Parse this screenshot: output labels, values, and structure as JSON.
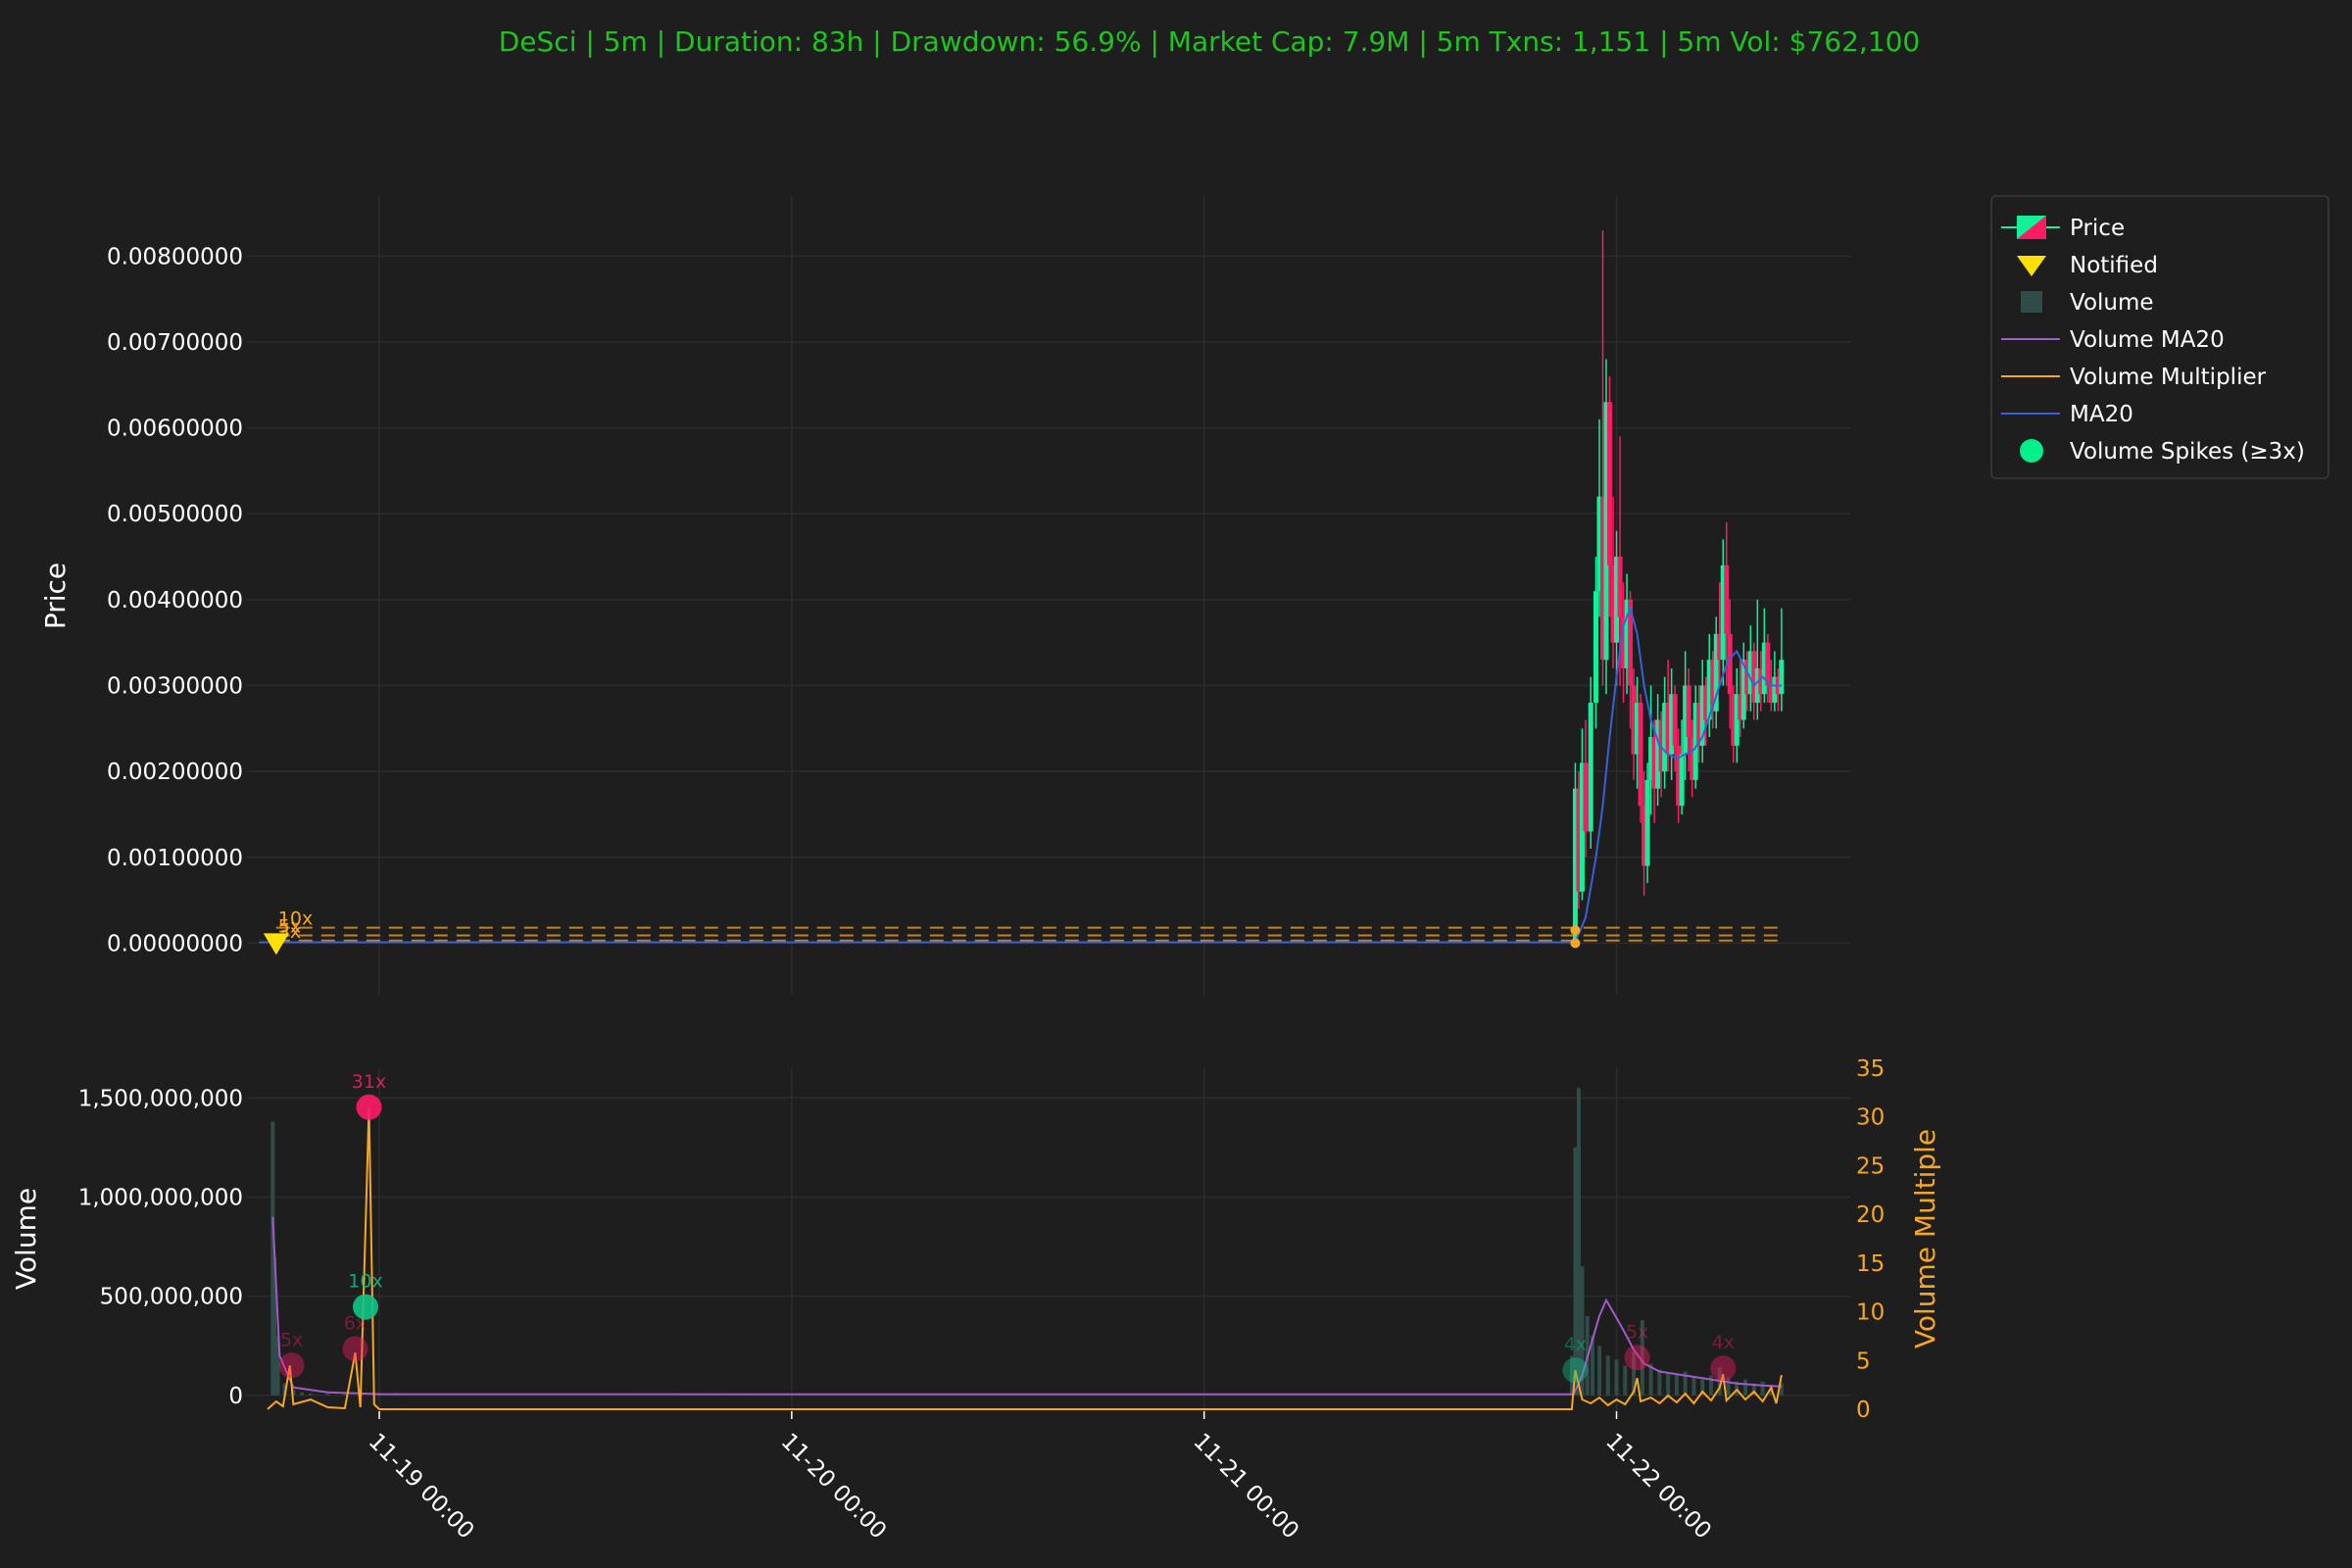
{
  "chart_data": {
    "type": "candlestick",
    "title": "DeSci | 5m | Duration: 83h | Drawdown: 56.9% | Market Cap: 7.9M | 5m Txns: 1,151 | 5m Vol: $762,100",
    "x_ticks": [
      "11-19 00:00",
      "11-20 00:00",
      "11-21 00:00",
      "11-22 00:00"
    ],
    "x_range_hours": [
      -7.7,
      85.6
    ],
    "price_panel": {
      "ylabel": "Price",
      "y_ticks": [
        "0.00000000",
        "0.00100000",
        "0.00200000",
        "0.00300000",
        "0.00400000",
        "0.00500000",
        "0.00600000",
        "0.00700000",
        "0.00800000"
      ],
      "ylim": [
        -0.0006,
        0.0087
      ],
      "candles_hours": [
        [
          69.6,
          2e-05,
          0.0018,
          0.0021,
          1e-05
        ],
        [
          69.8,
          0.0018,
          0.0006,
          0.002,
          0.0004
        ],
        [
          70.0,
          0.0006,
          0.0021,
          0.0025,
          0.0005
        ],
        [
          70.2,
          0.0021,
          0.0013,
          0.0026,
          0.001
        ],
        [
          70.5,
          0.0013,
          0.0028,
          0.0031,
          0.0011
        ],
        [
          70.8,
          0.0028,
          0.0041,
          0.0045,
          0.0025
        ],
        [
          71.0,
          0.0041,
          0.0052,
          0.0061,
          0.0038
        ],
        [
          71.2,
          0.0052,
          0.0033,
          0.0083,
          0.003
        ],
        [
          71.4,
          0.0033,
          0.0063,
          0.0068,
          0.0029
        ],
        [
          71.6,
          0.0063,
          0.0044,
          0.0066,
          0.0038
        ],
        [
          71.8,
          0.0044,
          0.0035,
          0.0052,
          0.0032
        ],
        [
          72.0,
          0.0035,
          0.0045,
          0.0048,
          0.003
        ],
        [
          72.2,
          0.0045,
          0.0038,
          0.0059,
          0.003
        ],
        [
          72.4,
          0.0038,
          0.0032,
          0.0042,
          0.0028
        ],
        [
          72.6,
          0.0032,
          0.004,
          0.0043,
          0.0029
        ],
        [
          72.8,
          0.004,
          0.003,
          0.0041,
          0.0025
        ],
        [
          73.0,
          0.003,
          0.0022,
          0.0032,
          0.0019
        ],
        [
          73.2,
          0.0022,
          0.0028,
          0.0031,
          0.0018
        ],
        [
          73.4,
          0.0028,
          0.0016,
          0.0029,
          0.0014
        ],
        [
          73.6,
          0.0016,
          0.0009,
          0.002,
          0.00055
        ],
        [
          73.8,
          0.0009,
          0.0019,
          0.0021,
          0.0007
        ],
        [
          74.0,
          0.0019,
          0.0024,
          0.003,
          0.0015
        ],
        [
          74.2,
          0.0024,
          0.0018,
          0.0026,
          0.0014
        ],
        [
          74.4,
          0.0018,
          0.0026,
          0.0029,
          0.0016
        ],
        [
          74.6,
          0.0026,
          0.002,
          0.0027,
          0.0017
        ],
        [
          74.8,
          0.002,
          0.0028,
          0.0031,
          0.0018
        ],
        [
          75.0,
          0.0028,
          0.0022,
          0.0033,
          0.002
        ],
        [
          75.2,
          0.0022,
          0.0029,
          0.0032,
          0.0019
        ],
        [
          75.4,
          0.0029,
          0.0023,
          0.003,
          0.002
        ],
        [
          75.6,
          0.0023,
          0.0016,
          0.0025,
          0.0014
        ],
        [
          75.8,
          0.0016,
          0.0022,
          0.0026,
          0.0015
        ],
        [
          76.0,
          0.0022,
          0.003,
          0.0034,
          0.0019
        ],
        [
          76.2,
          0.003,
          0.0024,
          0.0032,
          0.002
        ],
        [
          76.4,
          0.0024,
          0.0019,
          0.0026,
          0.0017
        ],
        [
          76.6,
          0.0019,
          0.0028,
          0.003,
          0.0018
        ],
        [
          76.8,
          0.0028,
          0.0023,
          0.003,
          0.0021
        ],
        [
          77.0,
          0.0023,
          0.003,
          0.0033,
          0.0021
        ],
        [
          77.2,
          0.003,
          0.0026,
          0.0031,
          0.0023
        ],
        [
          77.4,
          0.0026,
          0.0033,
          0.0036,
          0.0024
        ],
        [
          77.6,
          0.0033,
          0.0027,
          0.0034,
          0.0025
        ],
        [
          77.8,
          0.0027,
          0.0036,
          0.0038,
          0.0025
        ],
        [
          78.0,
          0.0036,
          0.0033,
          0.0042,
          0.003
        ],
        [
          78.2,
          0.0033,
          0.0044,
          0.0047,
          0.003
        ],
        [
          78.4,
          0.0044,
          0.0036,
          0.0049,
          0.003
        ],
        [
          78.6,
          0.0036,
          0.0029,
          0.004,
          0.0025
        ],
        [
          78.8,
          0.0029,
          0.0023,
          0.003,
          0.0021
        ],
        [
          79.0,
          0.0023,
          0.0029,
          0.0032,
          0.0021
        ],
        [
          79.2,
          0.0029,
          0.0026,
          0.0033,
          0.0024
        ],
        [
          79.4,
          0.0026,
          0.0033,
          0.0035,
          0.0025
        ],
        [
          79.6,
          0.0033,
          0.0029,
          0.0034,
          0.0027
        ],
        [
          79.8,
          0.0029,
          0.0034,
          0.0037,
          0.0027
        ],
        [
          80.0,
          0.0034,
          0.0028,
          0.0035,
          0.0026
        ],
        [
          80.2,
          0.0028,
          0.0032,
          0.004,
          0.0026
        ],
        [
          80.4,
          0.0032,
          0.0029,
          0.0034,
          0.0027
        ],
        [
          80.6,
          0.0029,
          0.0035,
          0.0039,
          0.0028
        ],
        [
          80.8,
          0.0035,
          0.003,
          0.0036,
          0.0028
        ],
        [
          81.0,
          0.003,
          0.0028,
          0.0033,
          0.0027
        ],
        [
          81.2,
          0.0028,
          0.0031,
          0.0034,
          0.0027
        ],
        [
          81.4,
          0.0031,
          0.0029,
          0.0032,
          0.0027
        ],
        [
          81.6,
          0.0029,
          0.0033,
          0.0039,
          0.0027
        ]
      ],
      "ma20_hours": [
        [
          -7.0,
          1e-05
        ],
        [
          69.6,
          1e-05
        ],
        [
          70.2,
          0.0003
        ],
        [
          70.8,
          0.001
        ],
        [
          71.2,
          0.0016
        ],
        [
          71.6,
          0.0024
        ],
        [
          72.0,
          0.0031
        ],
        [
          72.4,
          0.0037
        ],
        [
          72.8,
          0.0039
        ],
        [
          73.2,
          0.0036
        ],
        [
          73.6,
          0.003
        ],
        [
          74.0,
          0.0026
        ],
        [
          74.5,
          0.0023
        ],
        [
          75.0,
          0.0022
        ],
        [
          75.5,
          0.00215
        ],
        [
          76.0,
          0.0022
        ],
        [
          76.5,
          0.00225
        ],
        [
          77.0,
          0.0024
        ],
        [
          77.5,
          0.0027
        ],
        [
          78.0,
          0.003
        ],
        [
          78.5,
          0.0033
        ],
        [
          79.0,
          0.0034
        ],
        [
          79.5,
          0.0032
        ],
        [
          80.0,
          0.003
        ],
        [
          80.5,
          0.0031
        ],
        [
          81.0,
          0.003
        ],
        [
          81.6,
          0.003
        ]
      ],
      "notified": {
        "x_hours": -6.0,
        "y": 0.0
      },
      "threshold_lines": [
        {
          "label": "10x",
          "y": 0.00018
        },
        {
          "label": "5x",
          "y": 9e-05
        },
        {
          "label": "3x",
          "y": 3e-05
        }
      ],
      "markers_hours": [
        69.6
      ]
    },
    "volume_panel": {
      "ylabel": "Volume",
      "y_ticks": [
        0,
        500000000,
        1000000000,
        1500000000
      ],
      "y_tick_labels": [
        "0",
        "500,000,000",
        "1,000,000,000",
        "1,500,000,000"
      ],
      "ylim": [
        -80000000,
        1650000000
      ],
      "y2label": "Volume Multiple",
      "y2_ticks": [
        0,
        5,
        10,
        15,
        20,
        25,
        30,
        35
      ],
      "y2lim": [
        0,
        35
      ],
      "volume_bars_hours": [
        [
          -6.2,
          1380000000
        ],
        [
          -6.1,
          700000000
        ],
        [
          -5.9,
          300000000
        ],
        [
          -5.5,
          60000000
        ],
        [
          -5.0,
          30000000
        ],
        [
          -4.5,
          15000000
        ],
        [
          -4.0,
          10000000
        ],
        [
          -3.0,
          8000000
        ],
        [
          -2.0,
          6000000
        ],
        [
          -1.0,
          5000000
        ],
        [
          0.0,
          4000000
        ],
        [
          1.0,
          3000000
        ],
        [
          69.4,
          200000000
        ],
        [
          69.6,
          1250000000
        ],
        [
          69.8,
          1550000000
        ],
        [
          70.0,
          650000000
        ],
        [
          70.3,
          400000000
        ],
        [
          70.6,
          300000000
        ],
        [
          71.0,
          250000000
        ],
        [
          71.5,
          200000000
        ],
        [
          72.0,
          180000000
        ],
        [
          72.5,
          150000000
        ],
        [
          73.0,
          220000000
        ],
        [
          73.5,
          380000000
        ],
        [
          74.0,
          160000000
        ],
        [
          74.5,
          130000000
        ],
        [
          75.0,
          110000000
        ],
        [
          75.5,
          100000000
        ],
        [
          76.0,
          120000000
        ],
        [
          76.5,
          90000000
        ],
        [
          77.0,
          80000000
        ],
        [
          77.5,
          100000000
        ],
        [
          78.0,
          140000000
        ],
        [
          78.5,
          90000000
        ],
        [
          79.0,
          70000000
        ],
        [
          79.5,
          80000000
        ],
        [
          80.0,
          60000000
        ],
        [
          80.5,
          70000000
        ],
        [
          81.0,
          50000000
        ],
        [
          81.6,
          60000000
        ]
      ],
      "volume_ma20_hours": [
        [
          -6.2,
          900000000
        ],
        [
          -5.8,
          200000000
        ],
        [
          -5.0,
          40000000
        ],
        [
          -3.0,
          15000000
        ],
        [
          0.0,
          6000000
        ],
        [
          40.0,
          5000000
        ],
        [
          69.5,
          5000000
        ],
        [
          70.0,
          100000000
        ],
        [
          70.5,
          250000000
        ],
        [
          71.0,
          400000000
        ],
        [
          71.4,
          480000000
        ],
        [
          71.8,
          420000000
        ],
        [
          72.4,
          330000000
        ],
        [
          73.0,
          230000000
        ],
        [
          73.6,
          160000000
        ],
        [
          74.5,
          120000000
        ],
        [
          76.0,
          100000000
        ],
        [
          77.5,
          80000000
        ],
        [
          79.0,
          60000000
        ],
        [
          80.5,
          50000000
        ],
        [
          81.6,
          45000000
        ]
      ],
      "volume_multiplier_hours": [
        [
          -6.5,
          0.0
        ],
        [
          -6.0,
          0.8
        ],
        [
          -5.6,
          0.3
        ],
        [
          -5.2,
          4.5
        ],
        [
          -5.0,
          0.5
        ],
        [
          -4.0,
          1.0
        ],
        [
          -3.0,
          0.2
        ],
        [
          -2.0,
          0.1
        ],
        [
          -1.4,
          5.8
        ],
        [
          -1.1,
          0.2
        ],
        [
          -0.6,
          31.0
        ],
        [
          -0.3,
          0.5
        ],
        [
          0.0,
          0.0
        ],
        [
          69.4,
          0.0
        ],
        [
          69.6,
          4.0
        ],
        [
          70.0,
          1.0
        ],
        [
          70.5,
          0.6
        ],
        [
          71.0,
          1.2
        ],
        [
          71.5,
          0.4
        ],
        [
          72.0,
          1.0
        ],
        [
          72.5,
          0.5
        ],
        [
          73.0,
          1.8
        ],
        [
          73.2,
          3.2
        ],
        [
          73.4,
          0.8
        ],
        [
          74.0,
          1.2
        ],
        [
          74.5,
          0.6
        ],
        [
          75.0,
          1.4
        ],
        [
          75.5,
          0.7
        ],
        [
          76.0,
          1.6
        ],
        [
          76.5,
          0.6
        ],
        [
          77.0,
          1.8
        ],
        [
          77.5,
          0.9
        ],
        [
          78.0,
          2.2
        ],
        [
          78.2,
          3.6
        ],
        [
          78.4,
          0.9
        ],
        [
          79.0,
          2.0
        ],
        [
          79.5,
          1.0
        ],
        [
          80.0,
          1.8
        ],
        [
          80.5,
          0.8
        ],
        [
          81.0,
          2.2
        ],
        [
          81.3,
          0.6
        ],
        [
          81.6,
          3.5
        ]
      ],
      "spikes_hours": [
        {
          "x": -5.1,
          "mult": 4.5,
          "label": "5x",
          "color": "#ff1a66"
        },
        {
          "x": -1.4,
          "mult": 6.2,
          "label": "6x",
          "color": "#ff1a66"
        },
        {
          "x": -0.8,
          "mult": 10.5,
          "label": "10x",
          "color": "#11c488"
        },
        {
          "x": -0.6,
          "mult": 31.0,
          "label": "31x",
          "color": "#ff1a66"
        },
        {
          "x": 69.6,
          "mult": 4.0,
          "label": "4x",
          "color": "#11c488"
        },
        {
          "x": 73.2,
          "mult": 5.3,
          "label": "5x",
          "color": "#ff1a66"
        },
        {
          "x": 78.2,
          "mult": 4.2,
          "label": "4x",
          "color": "#ff1a66"
        }
      ]
    },
    "legend": {
      "placement": "top-right",
      "entries": [
        {
          "label": "Price",
          "icon": "candle"
        },
        {
          "label": "Notified",
          "icon": "triangle",
          "color": "#ffe000"
        },
        {
          "label": "Volume",
          "icon": "square",
          "color": "#2f4c48"
        },
        {
          "label": "Volume MA20",
          "icon": "line",
          "color": "#a15bc9"
        },
        {
          "label": "Volume Multiplier",
          "icon": "line",
          "color": "#f5a623"
        },
        {
          "label": "MA20",
          "icon": "line",
          "color": "#3a60d6"
        },
        {
          "label": "Volume Spikes (≥3x)",
          "icon": "circle",
          "color": "#00f08a"
        }
      ]
    },
    "colors": {
      "background": "#1e1e1e",
      "up": "#13f09a",
      "down": "#ff1a66",
      "ma20": "#3a60d6",
      "volume": "#2f4c48",
      "volume_ma20": "#a15bc9",
      "multiplier": "#f5a623",
      "title": "#1fc41f",
      "notified": "#ffe000"
    }
  }
}
